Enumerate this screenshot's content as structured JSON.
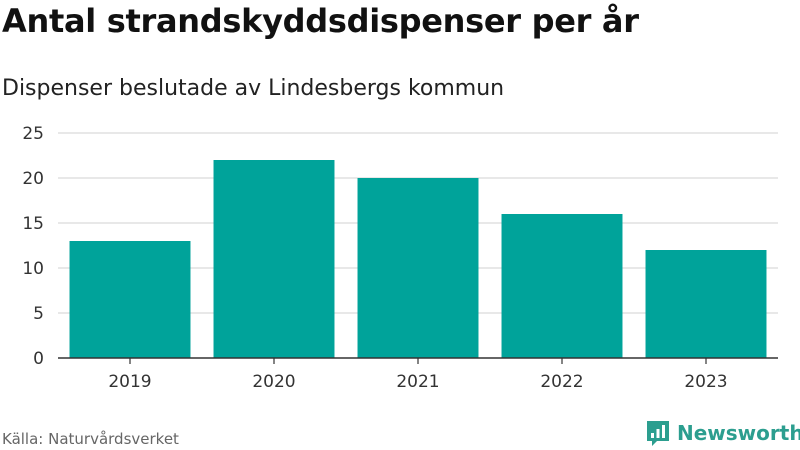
{
  "title": "Antal strandskyddsdispenser per år",
  "subtitle": "Dispenser beslutade av Lindesbergs kommun",
  "source": "Källa: Naturvårdsverket",
  "brand": {
    "name": "Newsworthy",
    "icon": "newsworthy-logo-icon",
    "color": "#2c9e8f"
  },
  "colors": {
    "bar": "#00a39a",
    "grid": "#d9d9d9",
    "axis": "#333333",
    "tick_text": "#333333"
  },
  "chart_data": {
    "type": "bar",
    "title": "Antal strandskyddsdispenser per år",
    "subtitle": "Dispenser beslutade av Lindesbergs kommun",
    "categories": [
      "2019",
      "2020",
      "2021",
      "2022",
      "2023"
    ],
    "values": [
      13,
      22,
      20,
      16,
      12
    ],
    "xlabel": "",
    "ylabel": "",
    "ylim": [
      0,
      25
    ],
    "yticks": [
      0,
      5,
      10,
      15,
      20,
      25
    ],
    "grid": true,
    "legend": "none"
  }
}
